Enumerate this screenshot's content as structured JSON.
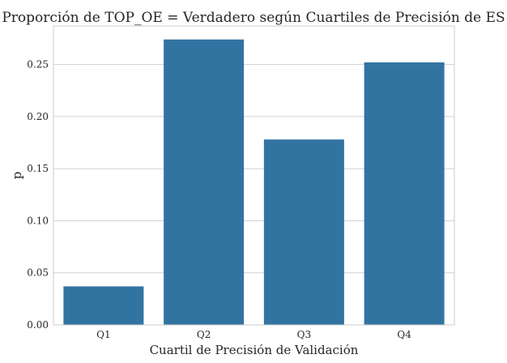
{
  "chart_data": {
    "type": "bar",
    "title": "Proporción de TOP_OE = Verdadero según Cuartiles de Precisión de ES",
    "xlabel": "Cuartil de Precisión de Validación",
    "ylabel": "p",
    "categories": [
      "Q1",
      "Q2",
      "Q3",
      "Q4"
    ],
    "values": [
      0.037,
      0.274,
      0.178,
      0.252
    ],
    "ylim": [
      0,
      0.287
    ],
    "yticks": [
      0.0,
      0.05,
      0.1,
      0.15,
      0.2,
      0.25
    ],
    "ytick_labels": [
      "0.00",
      "0.05",
      "0.10",
      "0.15",
      "0.20",
      "0.25"
    ],
    "grid": "horizontal",
    "legend": "none",
    "bar_color": "#3274a1"
  }
}
